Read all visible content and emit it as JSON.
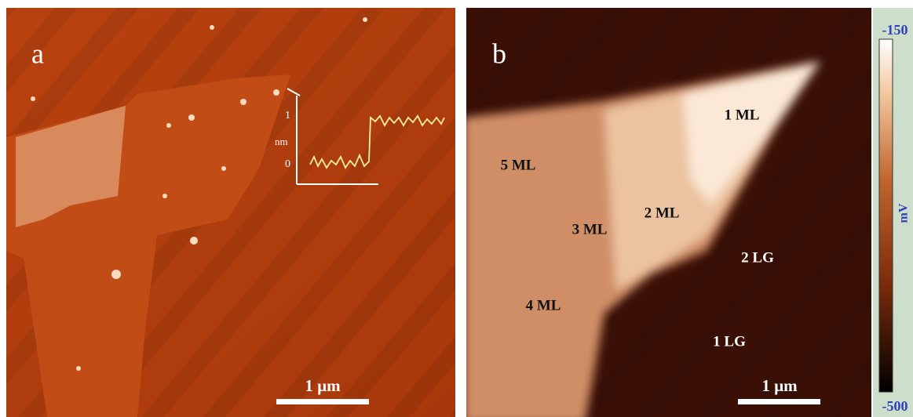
{
  "panel_a": {
    "label": "a",
    "scale_bar": "1 µm",
    "inset": {
      "unit": "nm",
      "ticks": [
        1,
        0
      ]
    }
  },
  "panel_b": {
    "label": "b",
    "scale_bar": "1 µm",
    "regions": [
      "1 ML",
      "5 ML",
      "2 ML",
      "3 ML",
      "2 LG",
      "4 ML",
      "1 LG"
    ]
  },
  "colorbar": {
    "max": -150,
    "min": -500,
    "unit": "mV"
  }
}
